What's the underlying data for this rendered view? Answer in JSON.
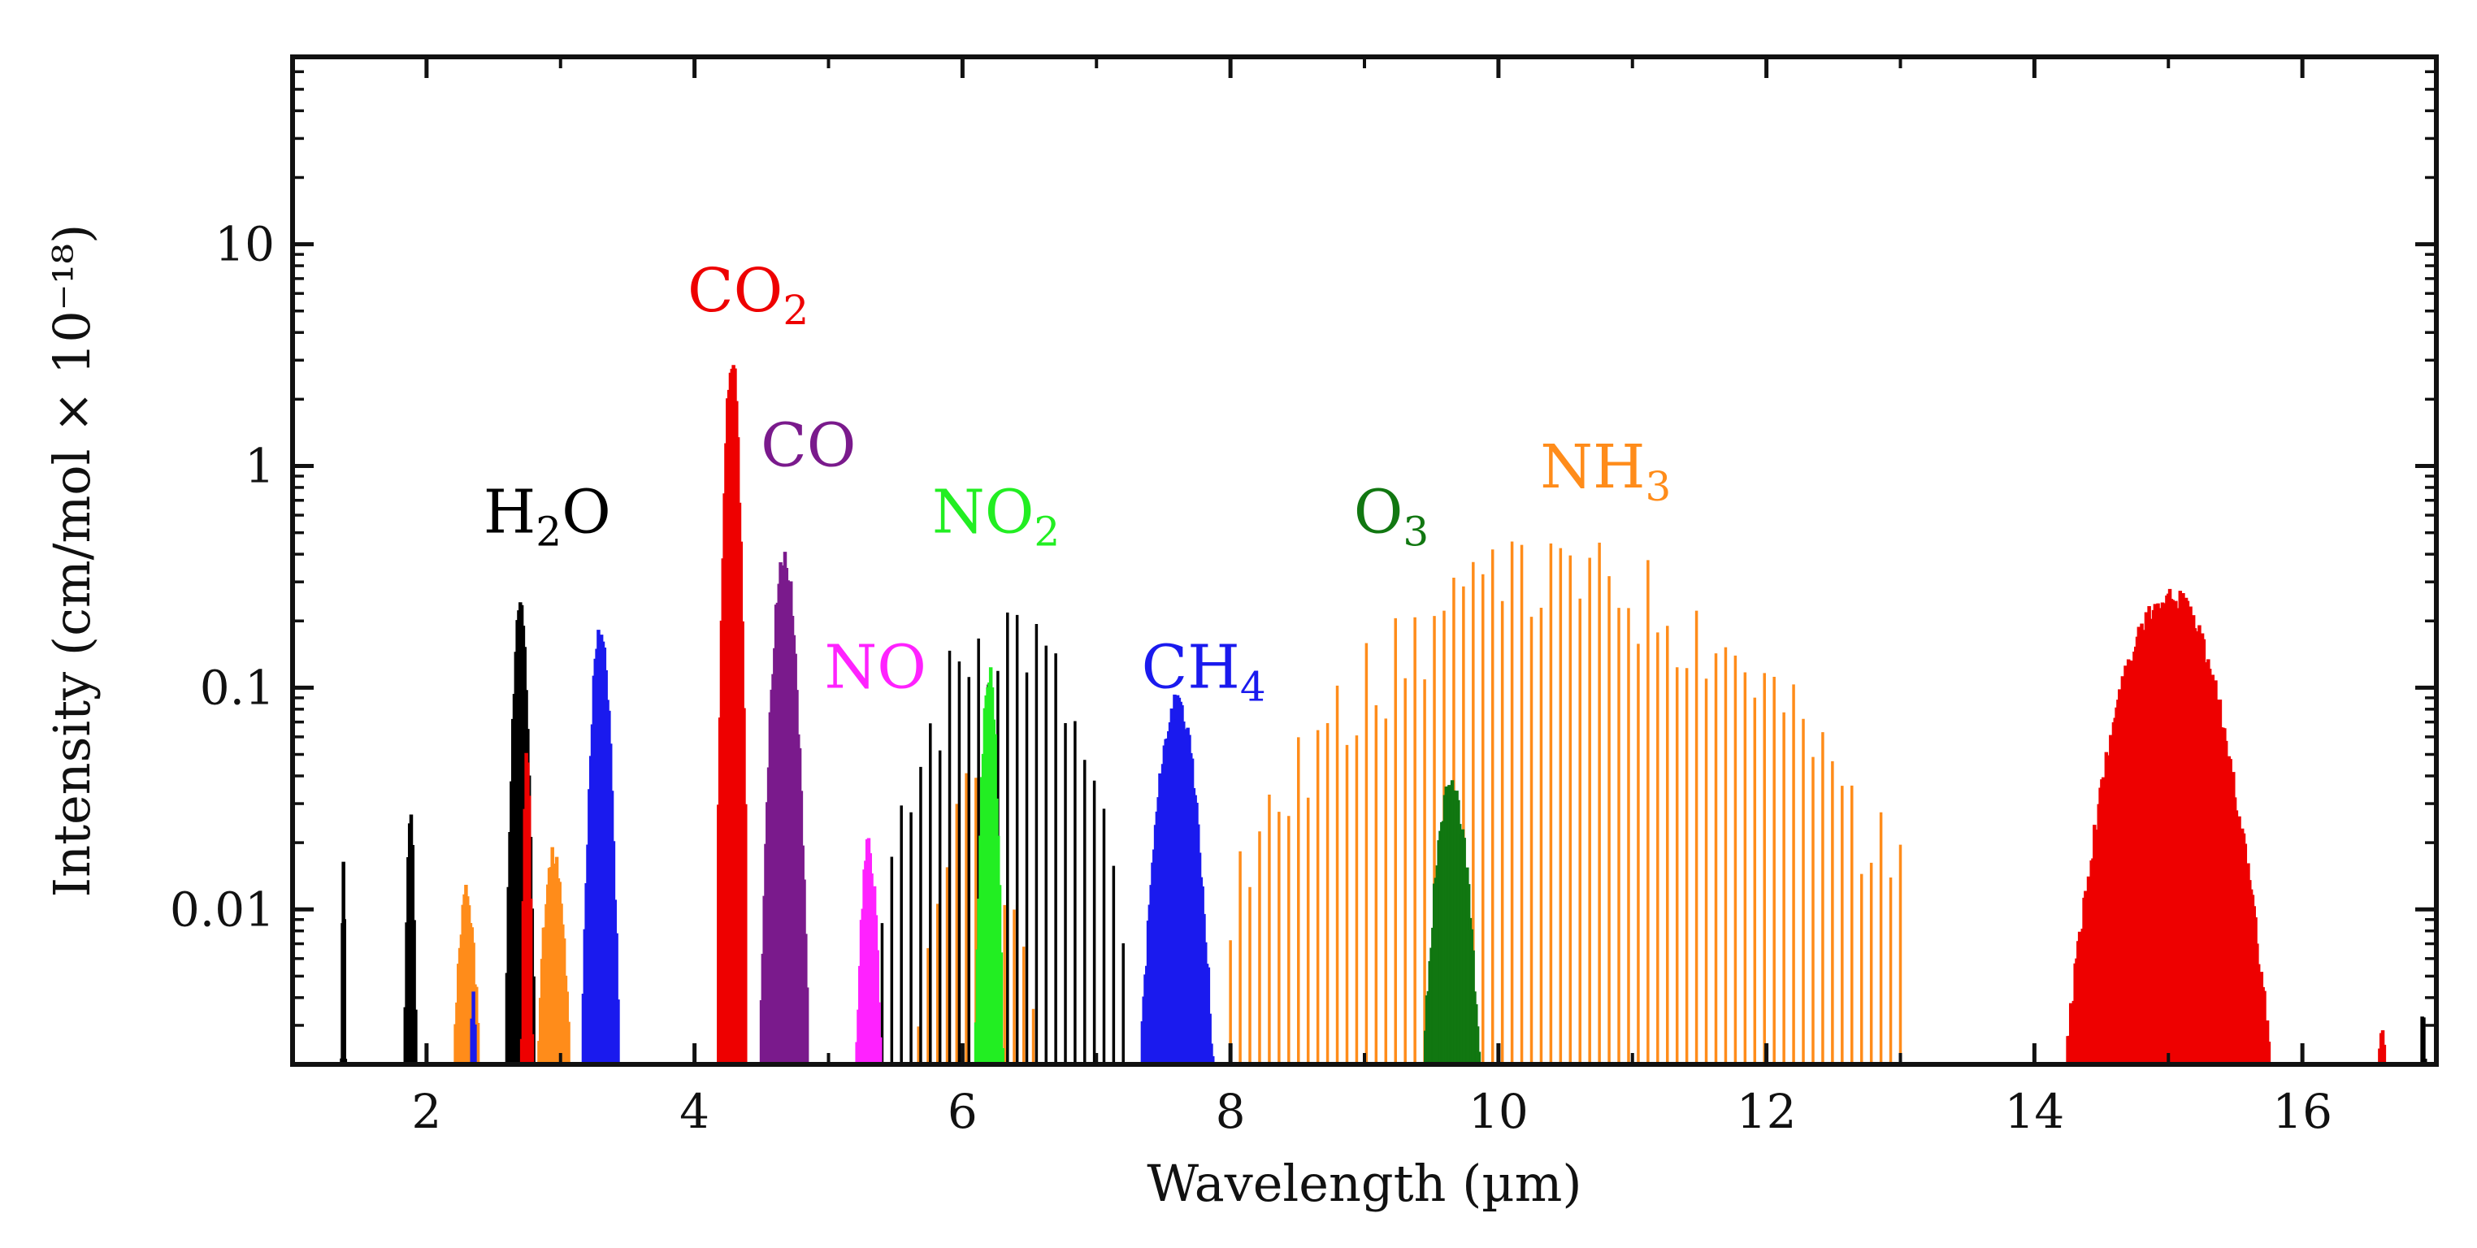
{
  "chart_data": {
    "type": "bar",
    "title": "",
    "xlabel": "Wavelength (µm)",
    "ylabel": "Intensity (cm/mol × 10⁻¹⁸)",
    "xlim": [
      1.0,
      17.0
    ],
    "ylim": [
      0.002,
      70
    ],
    "yscale": "log",
    "grid": false,
    "legend": "none",
    "x_ticks": [
      2,
      4,
      6,
      8,
      10,
      12,
      14,
      16
    ],
    "x_tick_labels": [
      "2",
      "4",
      "6",
      "8",
      "10",
      "12",
      "14",
      "16"
    ],
    "y_ticks": [
      0.01,
      0.1,
      1,
      10
    ],
    "y_tick_labels": [
      "0.01",
      "0.1",
      "1",
      "10"
    ],
    "series": [
      {
        "name": "H2O",
        "label": "H",
        "sub": "2",
        "suffix": "O",
        "color": "#000000",
        "label_x": 2.9,
        "label_y": 0.5,
        "bands": [
          {
            "center": 1.38,
            "width": 0.04,
            "peak": 0.017
          },
          {
            "center": 1.88,
            "width": 0.12,
            "peak": 0.028
          },
          {
            "center": 2.7,
            "width": 0.22,
            "peak": 0.25
          },
          {
            "center": 6.3,
            "width": 1.8,
            "peak": 0.3,
            "rotational": true
          },
          {
            "center": 16.9,
            "width": 0.1,
            "peak": 0.004
          }
        ]
      },
      {
        "name": "CO2",
        "label": "CO",
        "sub": "2",
        "suffix": "",
        "color": "#ee0000",
        "label_x": 4.4,
        "label_y": 5.0,
        "bands": [
          {
            "center": 2.75,
            "width": 0.1,
            "peak": 0.055
          },
          {
            "center": 4.28,
            "width": 0.2,
            "peak": 3.6
          },
          {
            "center": 15.0,
            "width": 1.5,
            "peak": 0.3
          },
          {
            "center": 16.6,
            "width": 0.2,
            "peak": 0.003
          }
        ]
      },
      {
        "name": "CO",
        "label": "CO",
        "sub": "",
        "suffix": "",
        "color": "#7a1a8c",
        "label_x": 4.85,
        "label_y": 1.0,
        "bands": [
          {
            "center": 4.67,
            "width": 0.34,
            "peak": 0.45
          }
        ]
      },
      {
        "name": "NO",
        "label": "NO",
        "sub": "",
        "suffix": "",
        "color": "#ff22ff",
        "label_x": 5.35,
        "label_y": 0.1,
        "bands": [
          {
            "center": 5.3,
            "width": 0.26,
            "peak": 0.022
          }
        ]
      },
      {
        "name": "NO2",
        "label": "NO",
        "sub": "2",
        "suffix": "",
        "color": "#22ee22",
        "label_x": 6.25,
        "label_y": 0.5,
        "bands": [
          {
            "center": 6.2,
            "width": 0.22,
            "peak": 0.13
          }
        ]
      },
      {
        "name": "CH4",
        "label": "CH",
        "sub": "4",
        "suffix": "",
        "color": "#1a1aee",
        "label_x": 7.8,
        "label_y": 0.1,
        "bands": [
          {
            "center": 2.35,
            "width": 0.09,
            "peak": 0.005
          },
          {
            "center": 3.3,
            "width": 0.28,
            "peak": 0.21
          },
          {
            "center": 7.6,
            "width": 0.6,
            "peak": 0.095
          }
        ]
      },
      {
        "name": "O3",
        "label": "O",
        "sub": "3",
        "suffix": "",
        "color": "#117711",
        "label_x": 9.2,
        "label_y": 0.5,
        "bands": [
          {
            "center": 9.65,
            "width": 0.52,
            "peak": 0.04
          }
        ]
      },
      {
        "name": "NH3",
        "label": "NH",
        "sub": "3",
        "suffix": "",
        "color": "#ff8c1a",
        "label_x": 10.8,
        "label_y": 0.8,
        "bands": [
          {
            "center": 2.3,
            "width": 0.3,
            "peak": 0.013
          },
          {
            "center": 2.95,
            "width": 0.35,
            "peak": 0.02
          },
          {
            "center": 6.1,
            "width": 1.0,
            "peak": 0.045,
            "rotational": true
          },
          {
            "center": 10.5,
            "width": 5.0,
            "peak": 0.5,
            "rotational": true
          }
        ]
      }
    ]
  }
}
